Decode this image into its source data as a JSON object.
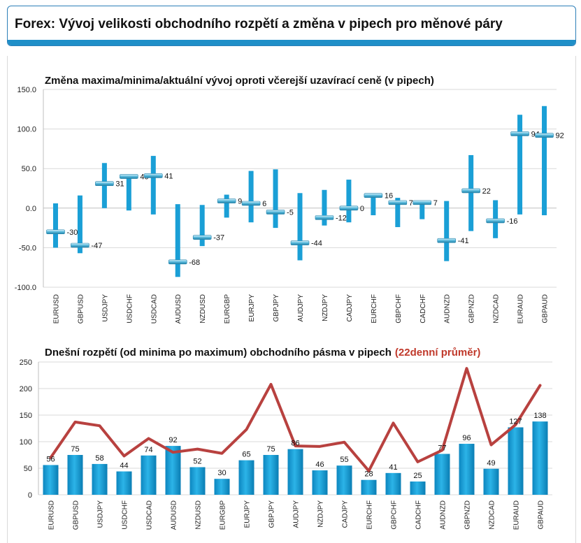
{
  "header": {
    "title": "Forex: Vývoj velikosti obchodního rozpětí a změna v pipech pro měnové páry"
  },
  "colors": {
    "bar": "#1a9fd6",
    "bar_dark": "#0d7fb3",
    "marker": "#3aa3c9",
    "line": "#b8413f",
    "header_bar": "#1f8fc8"
  },
  "chart_data": [
    {
      "type": "range",
      "title": "Změna maxima/minima/aktuální vývoj oproti včerejší uzavírací ceně (v pipech)",
      "categories": [
        "EURUSD",
        "GBPUSD",
        "USDJPY",
        "USDCHF",
        "USDCAD",
        "AUDUSD",
        "NZDUSD",
        "EURGBP",
        "EURJPY",
        "GBPJPY",
        "AUDJPY",
        "NZDJPY",
        "CADJPY",
        "EURCHF",
        "GBPCHF",
        "CADCHF",
        "AUDNZD",
        "GBPNZD",
        "NZDCAD",
        "EURAUD",
        "GBPAUD"
      ],
      "low": [
        -50,
        -57,
        0,
        -3,
        -8,
        -87,
        -48,
        -12,
        -18,
        -25,
        -66,
        -22,
        -18,
        -9,
        -24,
        -14,
        -67,
        -29,
        -38,
        -8,
        -9
      ],
      "high": [
        6,
        16,
        57,
        39,
        66,
        5,
        4,
        17,
        47,
        49,
        19,
        23,
        36,
        17,
        13,
        8,
        9,
        67,
        10,
        118,
        129
      ],
      "current": [
        -30,
        -47,
        31,
        40,
        41,
        -68,
        -37,
        9,
        6,
        -5,
        -44,
        -12,
        0,
        16,
        7,
        7,
        -41,
        22,
        -16,
        94,
        92
      ],
      "current_labels": [
        "-30",
        "-47",
        "31",
        "40",
        "41",
        "-68",
        "-37",
        "9",
        "6",
        "-5",
        "-44",
        "-12",
        "0",
        "16",
        "7",
        "7",
        "-41",
        "22",
        "-16",
        "94",
        "92"
      ],
      "ylim": [
        -100,
        150
      ],
      "yticks": [
        "-100.0",
        "-50.0",
        "0.0",
        "50.0",
        "100.0",
        "150.0"
      ],
      "ytick_values": [
        -100,
        -50,
        0,
        50,
        100,
        150
      ],
      "grid": true
    },
    {
      "type": "bar+line",
      "title": "Dnešní rozpětí (od minima po maximum) obchodního pásma v pipech",
      "title_highlight": "(22denní průměr)",
      "categories": [
        "EURUSD",
        "GBPUSD",
        "USDJPY",
        "USDCHF",
        "USDCAD",
        "AUDUSD",
        "NZDUSD",
        "EURGBP",
        "EURJPY",
        "GBPJPY",
        "AUDJPY",
        "NZDJPY",
        "CADJPY",
        "EURCHF",
        "GBPCHF",
        "CADCHF",
        "AUDNZD",
        "GBPNZD",
        "NZDCAD",
        "EURAUD",
        "GBPAUD"
      ],
      "values": [
        56,
        75,
        58,
        44,
        74,
        92,
        52,
        30,
        65,
        75,
        86,
        46,
        55,
        28,
        41,
        25,
        77,
        96,
        49,
        127,
        138
      ],
      "value_labels": [
        "56",
        "75",
        "58",
        "44",
        "74",
        "92",
        "52",
        "30",
        "65",
        "75",
        "86",
        "46",
        "55",
        "28",
        "41",
        "25",
        "77",
        "96",
        "49",
        "127",
        "138"
      ],
      "line_values": [
        70,
        137,
        130,
        73,
        106,
        80,
        86,
        78,
        123,
        208,
        92,
        91,
        99,
        45,
        135,
        62,
        84,
        238,
        94,
        132,
        206
      ],
      "ylim": [
        0,
        250
      ],
      "yticks": [
        "0",
        "50",
        "100",
        "150",
        "200",
        "250"
      ],
      "ytick_values": [
        0,
        50,
        100,
        150,
        200,
        250
      ],
      "grid": true
    }
  ]
}
